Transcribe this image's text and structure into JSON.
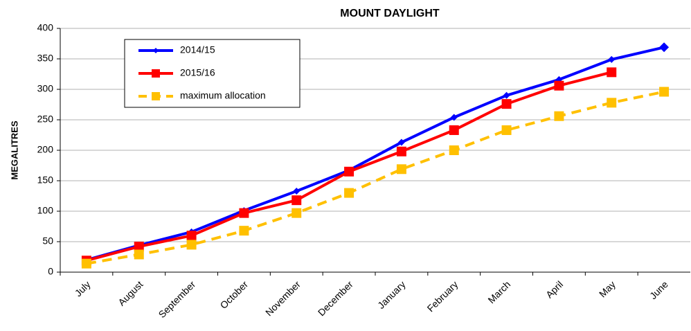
{
  "chart_data": {
    "type": "line",
    "title": "MOUNT DAYLIGHT",
    "y_label": "MEGALITRES",
    "categories": [
      "July",
      "August",
      "September",
      "October",
      "November",
      "December",
      "January",
      "February",
      "March",
      "April",
      "May",
      "June"
    ],
    "series": [
      {
        "name": "2014/15",
        "color": "#0000ff",
        "marker": "diamond",
        "dashed": false,
        "values": [
          20,
          44,
          66,
          101,
          133,
          167,
          213,
          254,
          290,
          316,
          349,
          369
        ]
      },
      {
        "name": "2015/16",
        "color": "#ff0000",
        "marker": "square",
        "dashed": false,
        "values": [
          19,
          42,
          60,
          97,
          118,
          165,
          198,
          233,
          276,
          306,
          328,
          null
        ]
      },
      {
        "name": "maximum allocation",
        "color": "#ffc000",
        "marker": "square",
        "dashed": true,
        "values": [
          14,
          29,
          45,
          68,
          97,
          130,
          169,
          200,
          233,
          256,
          278,
          296
        ]
      }
    ],
    "ylim": [
      0,
      400
    ],
    "yticks": [
      0,
      50,
      100,
      150,
      200,
      250,
      300,
      350,
      400
    ],
    "grid": true,
    "legend": "top-left"
  }
}
